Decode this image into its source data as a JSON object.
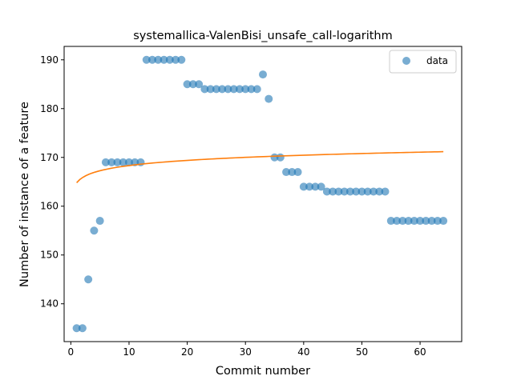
{
  "chart_data": {
    "type": "scatter",
    "title": "systemallica-ValenBisi_unsafe_call-logarithm",
    "xlabel": "Commit number",
    "ylabel": "Number of instance of a feature",
    "xlim": [
      -1.15,
      67.15
    ],
    "ylim": [
      132.25,
      192.75
    ],
    "xticks": [
      0,
      10,
      20,
      30,
      40,
      50,
      60
    ],
    "yticks": [
      140,
      150,
      160,
      170,
      180,
      190
    ],
    "grid": false,
    "legend_position": "top-right",
    "series": [
      {
        "name": "data",
        "kind": "scatter",
        "color": "#1f77b4",
        "x": [
          1,
          2,
          3,
          4,
          5,
          6,
          7,
          8,
          9,
          10,
          11,
          12,
          13,
          14,
          15,
          16,
          17,
          18,
          19,
          20,
          21,
          22,
          23,
          24,
          25,
          26,
          27,
          28,
          29,
          30,
          31,
          32,
          33,
          34,
          35,
          36,
          37,
          38,
          39,
          40,
          41,
          42,
          43,
          44,
          45,
          46,
          47,
          48,
          49,
          50,
          51,
          52,
          53,
          54,
          55,
          56,
          57,
          58,
          59,
          60,
          61,
          62,
          63,
          64
        ],
        "y": [
          135,
          135,
          145,
          155,
          157,
          169,
          169,
          169,
          169,
          169,
          169,
          169,
          190,
          190,
          190,
          190,
          190,
          190,
          190,
          185,
          185,
          185,
          184,
          184,
          184,
          184,
          184,
          184,
          184,
          184,
          184,
          184,
          187,
          182,
          170,
          170,
          167,
          167,
          167,
          164,
          164,
          164,
          164,
          163,
          163,
          163,
          163,
          163,
          163,
          163,
          163,
          163,
          163,
          163,
          157,
          157,
          157,
          157,
          157,
          157,
          157,
          157,
          157,
          157
        ]
      },
      {
        "kind": "line",
        "color": "#ff7f0e",
        "fit": "logarithmic",
        "x_range": [
          1,
          64
        ],
        "coefficients": {
          "a": 164.8,
          "b": 1.532
        }
      }
    ]
  }
}
